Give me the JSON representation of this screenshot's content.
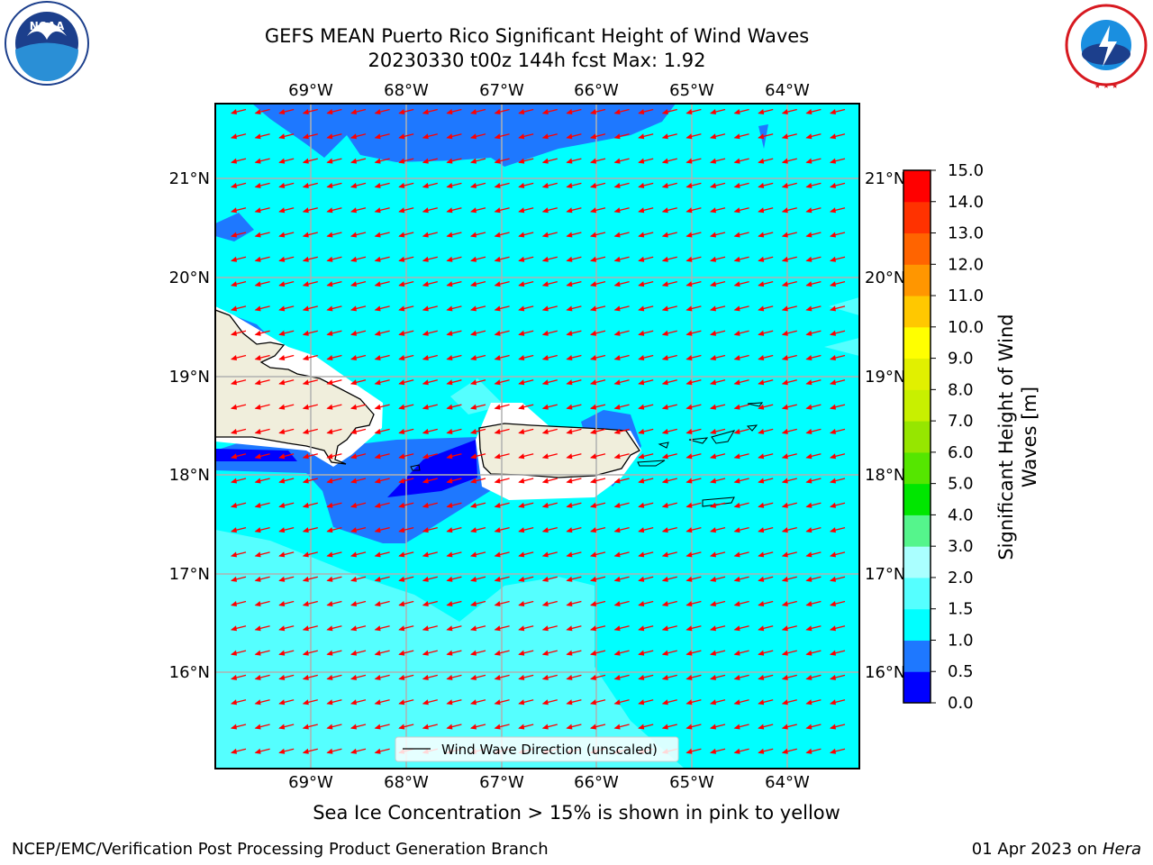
{
  "header": {
    "title_line1": "GEFS MEAN Puerto Rico Significant Height of Wind Waves",
    "title_line2": "20230330 t00z 144h fcst   Max: 1.92"
  },
  "logos": {
    "left": {
      "name": "noaa-logo",
      "text": "NOAA",
      "ring_text": "NATIONAL OCEANIC AND ATMOSPHERIC ADMINISTRATION · U.S. DEPARTMENT OF COMMERCE"
    },
    "right": {
      "name": "nws-logo",
      "ring_text": "NATIONAL WEATHER SERVICE"
    }
  },
  "map": {
    "top_lon_labels": [
      "69°W",
      "68°W",
      "67°W",
      "66°W",
      "65°W",
      "64°W"
    ],
    "bottom_lon_labels": [
      "69°W",
      "68°W",
      "67°W",
      "66°W",
      "65°W",
      "64°W"
    ],
    "left_lat_labels": [
      "21°N",
      "20°N",
      "19°N",
      "18°N",
      "17°N",
      "16°N"
    ],
    "right_lat_labels": [
      "21°N",
      "20°N",
      "19°N",
      "18°N",
      "17°N",
      "16°N"
    ],
    "legend_label": "Wind Wave Direction (unscaled)",
    "arrow_color": "#ff0000",
    "land_color": "#f0eedc",
    "grid_color": "#b0b0b0"
  },
  "colorbar": {
    "title": "Significant Height of Wind Waves [m]",
    "ticks": [
      "0.0",
      "0.5",
      "1.0",
      "1.5",
      "2.0",
      "3.0",
      "4.0",
      "5.0",
      "6.0",
      "7.0",
      "8.0",
      "9.0",
      "10.0",
      "11.0",
      "12.0",
      "13.0",
      "14.0",
      "15.0"
    ],
    "colors": [
      "#0000ff",
      "#1e78ff",
      "#00ffff",
      "#55ffff",
      "#aaffff",
      "#55f58c",
      "#00e600",
      "#55e600",
      "#96e600",
      "#c8f000",
      "#e1f000",
      "#ffff00",
      "#ffc800",
      "#ff9600",
      "#ff6400",
      "#ff3200",
      "#ff0000"
    ]
  },
  "caption": "Sea Ice Concentration > 15% is shown in pink to yellow",
  "footer": {
    "left": "NCEP/EMC/Verification Post Processing Product Generation Branch",
    "date": "01 Apr 2023 on ",
    "host": "Hera"
  }
}
